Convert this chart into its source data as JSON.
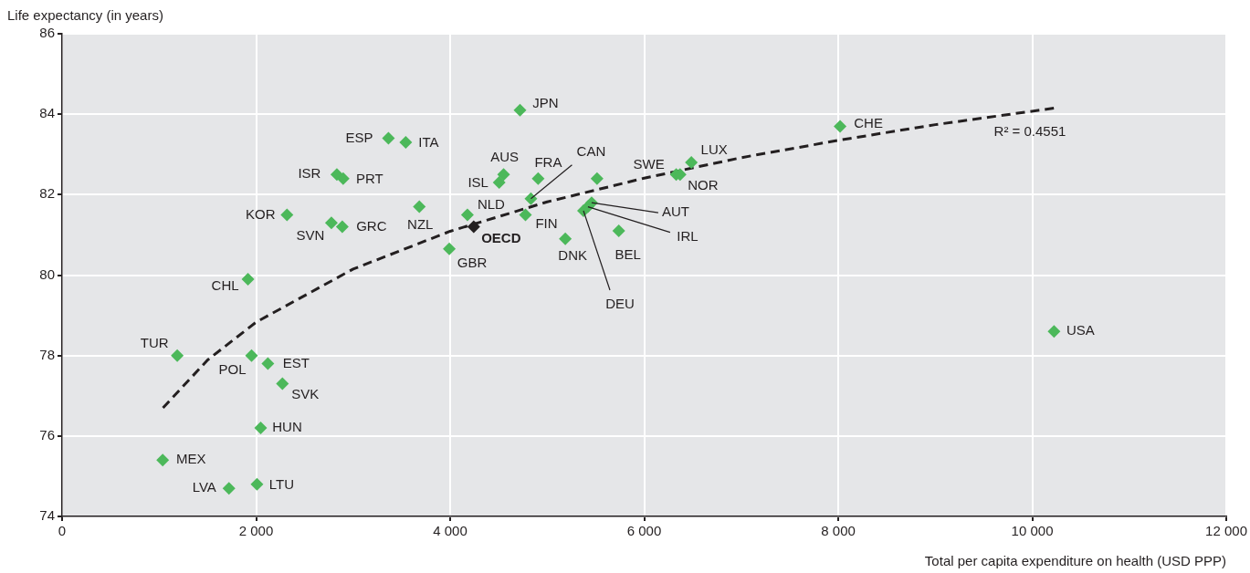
{
  "chart_data": {
    "type": "scatter",
    "xlabel": "Total per capita expenditure on health (USD PPP)",
    "ylabel": "Life expectancy (in years)",
    "xlim": [
      0,
      12000
    ],
    "ylim": [
      74,
      86
    ],
    "xticks": [
      0,
      {
        "value": 2000,
        "label": "2 000"
      },
      {
        "value": 4000,
        "label": "4 000"
      },
      {
        "value": 6000,
        "label": "6 000"
      },
      {
        "value": 8000,
        "label": "8 000"
      },
      {
        "value": 10000,
        "label": "10 000"
      },
      {
        "value": 12000,
        "label": "12 000"
      }
    ],
    "yticks": [
      74,
      76,
      78,
      80,
      82,
      84,
      86
    ],
    "grid": true,
    "legend": false,
    "marker": "diamond",
    "annotations": [
      "R² = 0.4551"
    ],
    "series": [
      {
        "color": "#4cb85a",
        "x": [
          1187,
          1916,
          2318,
          2776,
          2888,
          2832,
          2897,
          3364,
          3542,
          3682,
          3991,
          4178,
          4505,
          4551,
          4720,
          4907,
          4832,
          4776,
          5187,
          5514,
          6330,
          6486,
          5458,
          5420,
          5374,
          5738,
          8019,
          10224,
          1953,
          2121,
          2271,
          2047,
          1037,
          1720,
          2009,
          6370
        ],
        "values": [
          78.0,
          79.9,
          81.5,
          81.3,
          81.2,
          82.5,
          82.4,
          83.4,
          83.3,
          81.7,
          80.65,
          81.5,
          82.3,
          82.5,
          84.1,
          82.4,
          81.9,
          81.5,
          80.9,
          82.4,
          82.5,
          82.8,
          81.8,
          81.7,
          81.6,
          81.1,
          83.7,
          78.6,
          78.0,
          77.8,
          77.3,
          76.2,
          75.4,
          74.7,
          74.8,
          82.5
        ],
        "value_labels": [
          "TUR",
          "CHL",
          "KOR",
          "SVN",
          "GRC",
          "ISR",
          "PRT",
          "ESP",
          "ITA",
          "NZL",
          "GBR",
          "NLD",
          "ISL",
          "AUS",
          "JPN",
          "FRA",
          "CAN",
          "FIN",
          "DNK",
          null,
          "SWE",
          "LUX",
          "AUT",
          "IRL",
          "DEU",
          "BEL",
          "CHE",
          "USA",
          "POL",
          "EST",
          "SVK",
          "HUN",
          "MEX",
          "LVA",
          "LTU",
          "NOR"
        ]
      },
      {
        "color": "#231f20",
        "x": [
          4243
        ],
        "values": [
          81.2
        ],
        "value_labels": [
          "OECD"
        ]
      },
      {
        "type": "line",
        "line_style": "dashed",
        "marker": "none",
        "color": "#231f20",
        "x": [
          1040,
          1500,
          2000,
          3000,
          4000,
          5000,
          6000,
          7000,
          8000,
          9000,
          10224
        ],
        "values": [
          76.7,
          77.89,
          78.83,
          80.15,
          81.09,
          81.82,
          82.41,
          82.92,
          83.35,
          83.74,
          84.15
        ]
      }
    ]
  }
}
